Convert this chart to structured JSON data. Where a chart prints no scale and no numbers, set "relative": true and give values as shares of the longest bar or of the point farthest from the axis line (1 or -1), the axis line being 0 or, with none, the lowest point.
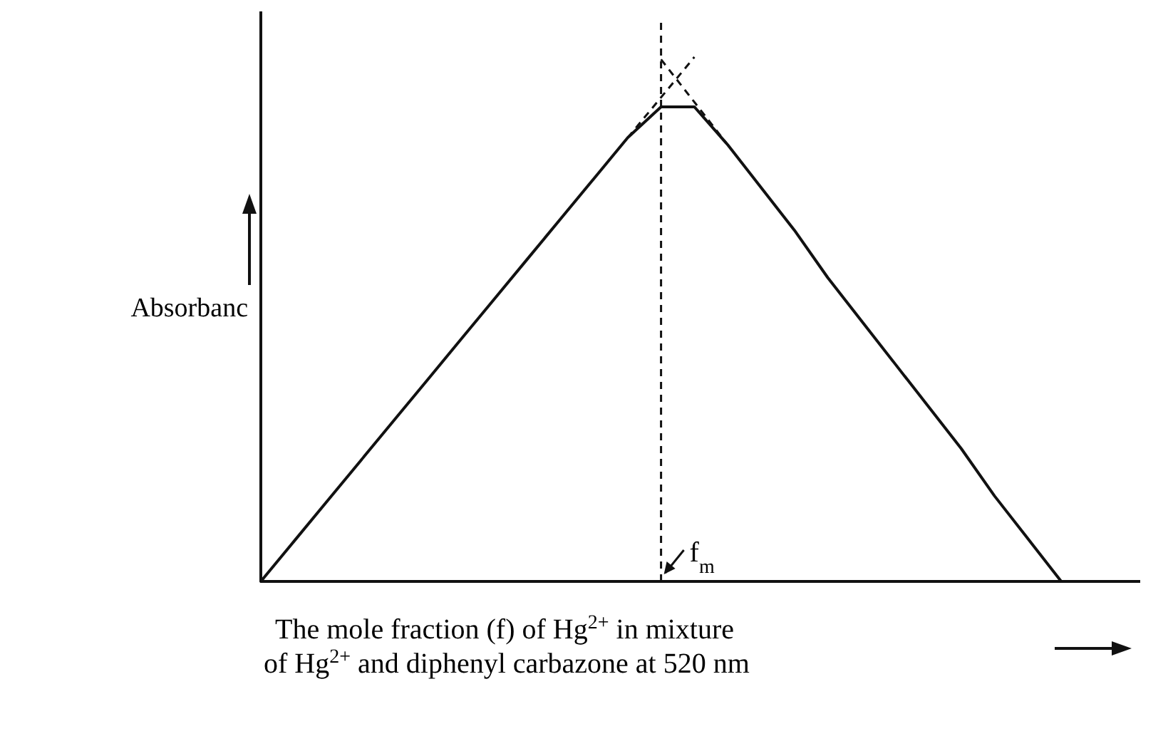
{
  "chart_data": {
    "type": "line",
    "relative": true,
    "xlabel": "The mole fraction (f) of Hg$^{2+}$ in mixture\nof Hg$^{2+}$ and diphenyl carbazone at 520 nm",
    "ylabel": "Absorbanc",
    "categories": [
      null,
      null,
      null,
      null,
      null,
      null,
      null,
      null,
      null,
      null,
      null,
      null,
      null,
      null,
      null,
      null,
      null,
      null,
      null,
      null,
      null,
      null,
      null,
      null,
      null
    ],
    "series": [
      {
        "color": "#111111",
        "line_style": "solid",
        "values": [
          0,
          0.085,
          0.17,
          0.255,
          0.34,
          0.425,
          0.51,
          0.595,
          0.68,
          0.765,
          0.85,
          0.935,
          1,
          1,
          0.92,
          0.83,
          0.74,
          0.64,
          0.55,
          0.46,
          0.37,
          0.28,
          0.18,
          0.09,
          0
        ]
      }
    ],
    "annotations": [
      "f$_{m}$"
    ],
    "grid": false,
    "marker": "none"
  }
}
